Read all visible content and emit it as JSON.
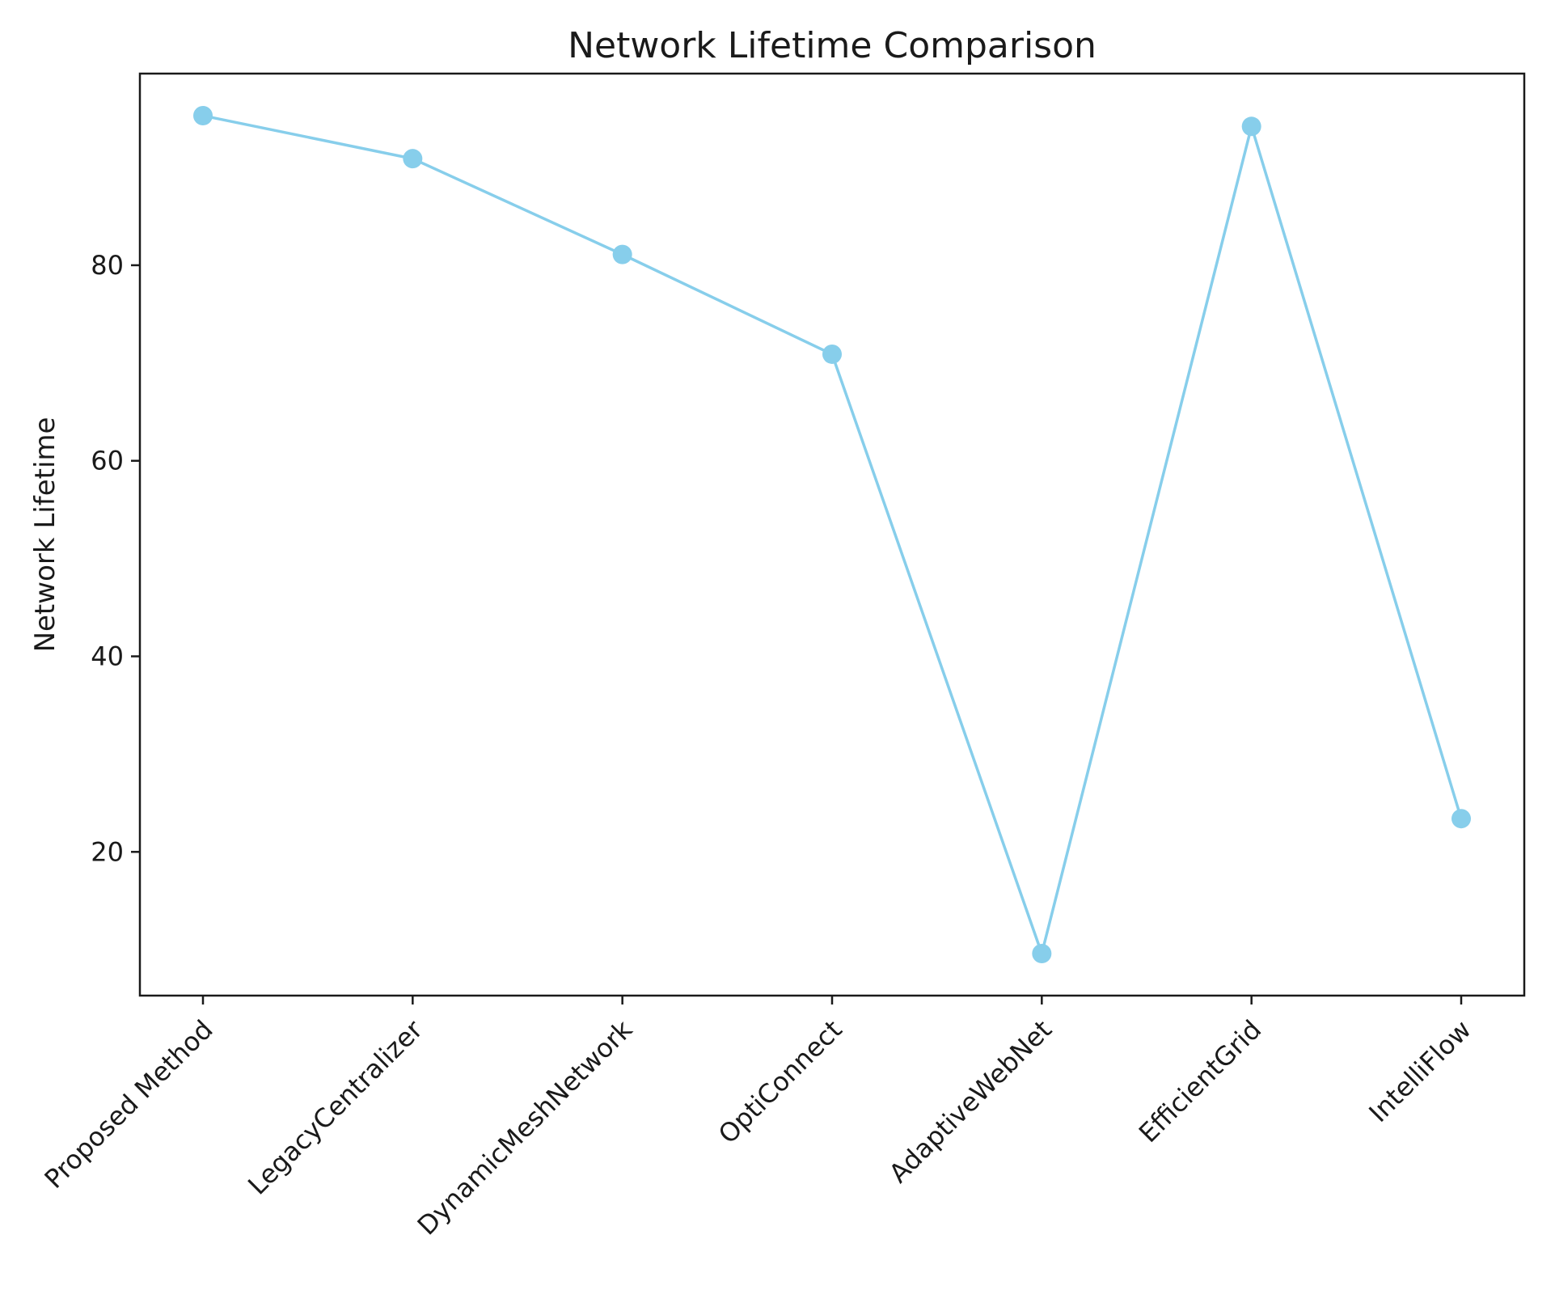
{
  "chart_data": {
    "type": "line",
    "title": "Network Lifetime Comparison",
    "xlabel": "",
    "ylabel": "Network Lifetime",
    "categories": [
      "Proposed Method",
      "LegacyCentralizer",
      "DynamicMeshNetwork",
      "OptiConnect",
      "AdaptiveWebNet",
      "EfficientGrid",
      "IntelliFlow"
    ],
    "series": [
      {
        "values": [
          95.3,
          90.9,
          81.1,
          70.9,
          9.6,
          94.2,
          23.4
        ],
        "color": "#87ceeb"
      }
    ],
    "yticks": [
      20,
      40,
      60,
      80
    ],
    "ylim": [
      5.3,
      99.6
    ],
    "grid": false,
    "legend": "none"
  }
}
